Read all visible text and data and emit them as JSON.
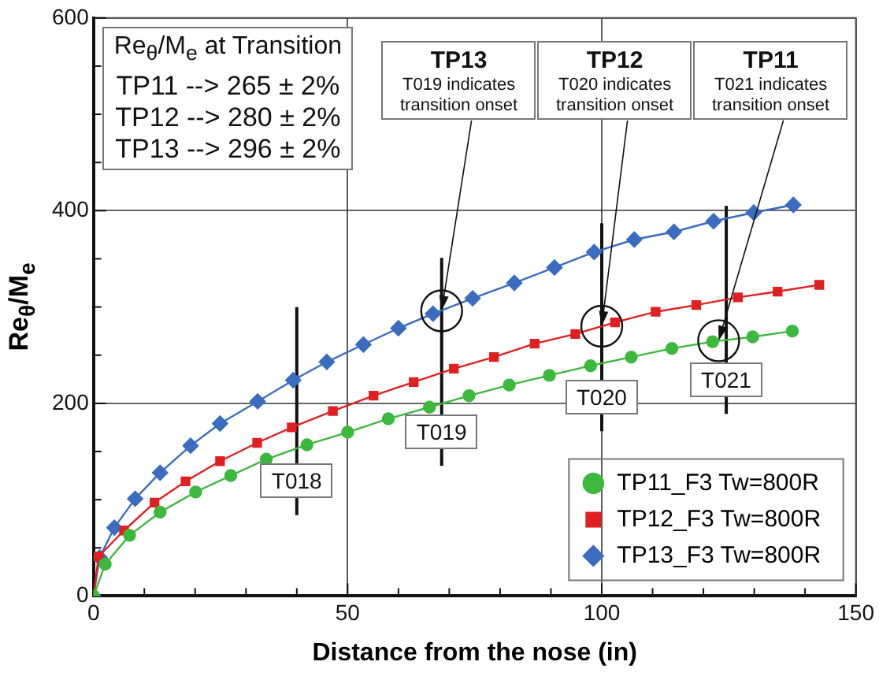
{
  "chart_data": {
    "type": "line",
    "xlabel": "Distance from the nose (in)",
    "ylabel": "Re$_{θ}$/M$_{e}$",
    "xlim": [
      0,
      150
    ],
    "ylim": [
      0,
      600
    ],
    "xticks": [
      0,
      {
        "value": 10,
        "label": null
      },
      {
        "value": 20,
        "label": null
      },
      {
        "value": 30,
        "label": null
      },
      {
        "value": 40,
        "label": null
      },
      50,
      {
        "value": 60,
        "label": null
      },
      {
        "value": 70,
        "label": null
      },
      {
        "value": 80,
        "label": null
      },
      {
        "value": 90,
        "label": null
      },
      100,
      {
        "value": 110,
        "label": null
      },
      {
        "value": 120,
        "label": null
      },
      {
        "value": 130,
        "label": null
      },
      {
        "value": 140,
        "label": null
      },
      150
    ],
    "yticks": [
      0,
      {
        "value": 50,
        "label": null
      },
      {
        "value": 100,
        "label": null
      },
      {
        "value": 150,
        "label": null
      },
      200,
      {
        "value": 250,
        "label": null
      },
      {
        "value": 300,
        "label": null
      },
      {
        "value": 350,
        "label": null
      },
      400,
      {
        "value": 450,
        "label": null
      },
      {
        "value": 500,
        "label": null
      },
      {
        "value": 550,
        "label": null
      },
      600
    ],
    "grid": true,
    "legend": "bottom right",
    "line_style": "solid",
    "series": [
      {
        "name": "TP11_F3 Tw=800R",
        "color": "#3cb93c",
        "marker": "circle",
        "x": [
          0,
          2.3,
          7.1,
          13.1,
          20.1,
          27,
          34,
          42,
          50,
          58,
          66.1,
          73.9,
          81.8,
          89.7,
          97.8,
          105.8,
          113.8,
          121.8,
          129.7,
          137.5
        ],
        "values": [
          0,
          33,
          63,
          87,
          108,
          125,
          142,
          157,
          170,
          184,
          196,
          208,
          219,
          229,
          239,
          248,
          257,
          264,
          269,
          275
        ]
      },
      {
        "name": "TP12_F3 Tw=800R",
        "color": "#e02020",
        "marker": "square",
        "x": [
          0,
          1.0,
          6.0,
          12.0,
          18.1,
          24.9,
          32.2,
          39.0,
          47.1,
          55.1,
          63.0,
          70.9,
          78.8,
          86.8,
          94.8,
          102.6,
          110.6,
          118.6,
          126.8,
          134.6,
          142.8
        ],
        "values": [
          0,
          41,
          68,
          97,
          119,
          140,
          159,
          175,
          192,
          208,
          222,
          236,
          248,
          262,
          272,
          284,
          295,
          302,
          310,
          316,
          323
        ]
      },
      {
        "name": "TP13_F3 Tw=800R",
        "color": "#3a6cc0",
        "marker": "diamond",
        "x": [
          0,
          1.2,
          4.1,
          8.2,
          13.1,
          19.1,
          24.9,
          32.3,
          39.3,
          45.9,
          53.1,
          60,
          66.8,
          74.6,
          82.8,
          90.7,
          98.5,
          106.4,
          114.2,
          122,
          129.9,
          137.7
        ],
        "values": [
          0,
          40,
          71,
          101,
          128,
          156,
          179,
          202,
          224,
          243,
          261,
          278,
          293,
          309,
          325,
          341,
          357,
          370,
          378,
          389,
          398,
          406
        ]
      }
    ],
    "ref_lines": [
      {
        "axis": "x",
        "value": 40,
        "label": "T018"
      },
      {
        "axis": "x",
        "value": 68.5,
        "label": "T019"
      },
      {
        "axis": "x",
        "value": 100,
        "label": "T020"
      },
      {
        "axis": "x",
        "value": 124.5,
        "label": "T021"
      }
    ],
    "annotations": [
      "Re$_{θ}$/M$_{e}$ at Transition\nTP11 --> 265 ± 2%\nTP12 --> 280 ± 2%\nTP13 --> 296 ± 2%",
      {
        "text": "TP13\nT019 indicates\ntransition onset",
        "x": 68.5,
        "y": 296
      },
      {
        "text": "TP12\nT020 indicates\ntransition onset",
        "x": 100,
        "y": 280
      },
      {
        "text": "TP11\nT021 indicates\ntransition onset",
        "x": 123,
        "y": 265
      }
    ]
  }
}
